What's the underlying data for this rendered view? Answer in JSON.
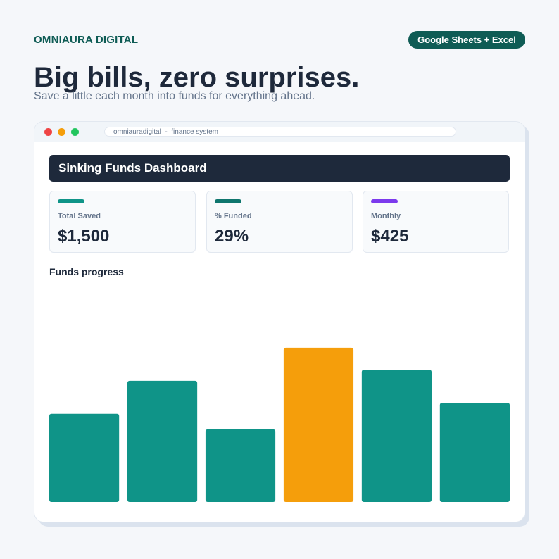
{
  "brand": "OMNIAURA DIGITAL",
  "badge": "Google Sheets + Excel",
  "headline": "Big bills, zero surprises.",
  "subtitle": "Save a little each month into funds for everything ahead.",
  "browser": {
    "url": "omniauradigital  -  finance system"
  },
  "dashboard": {
    "title": "Sinking Funds Dashboard"
  },
  "cards": [
    {
      "label": "Total Saved",
      "value": "$1,500",
      "color": "#0f9488"
    },
    {
      "label": "% Funded",
      "value": "29%",
      "color": "#0f766e"
    },
    {
      "label": "Monthly",
      "value": "$425",
      "color": "#7c3aed"
    }
  ],
  "chart_data": {
    "type": "bar",
    "title": "Funds progress",
    "values": [
      40,
      55,
      33,
      70,
      60,
      45
    ],
    "colors": [
      "#0f9488",
      "#0f9488",
      "#0f9488",
      "#f59e0b",
      "#0f9488",
      "#0f9488"
    ],
    "ylim": [
      0,
      100
    ]
  }
}
